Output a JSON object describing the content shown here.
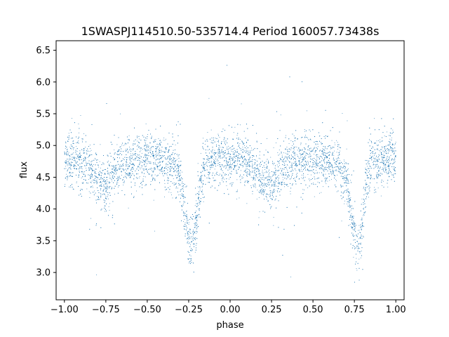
{
  "chart_data": {
    "type": "scatter",
    "title": "1SWASPJ114510.50-535714.4 Period 160057.73438s",
    "xlabel": "phase",
    "ylabel": "flux",
    "xlim": [
      -1.05,
      1.05
    ],
    "ylim": [
      2.57,
      6.65
    ],
    "x_ticks": [
      -1.0,
      -0.75,
      -0.5,
      -0.25,
      0.0,
      0.25,
      0.5,
      0.75,
      1.0
    ],
    "x_tick_labels": [
      "−1.00",
      "−0.75",
      "−0.50",
      "−0.25",
      "0.00",
      "0.25",
      "0.50",
      "0.75",
      "1.00"
    ],
    "y_ticks": [
      3.0,
      3.5,
      4.0,
      4.5,
      5.0,
      5.5,
      6.0,
      6.5
    ],
    "y_tick_labels": [
      "3.0",
      "3.5",
      "4.0",
      "4.5",
      "5.0",
      "5.5",
      "6.0",
      "6.5"
    ],
    "grid": false,
    "marker_color": "#1f77b4",
    "series": [
      {
        "x": [
          -1.0,
          -0.95,
          -0.9,
          -0.85,
          -0.8,
          -0.75,
          -0.7,
          -0.65,
          -0.6,
          -0.55,
          -0.5,
          -0.45,
          -0.4,
          -0.35,
          -0.3,
          -0.28,
          -0.26,
          -0.24,
          -0.22,
          -0.2,
          -0.18,
          -0.15,
          -0.1,
          -0.05,
          0.0,
          0.05,
          0.1,
          0.15,
          0.2,
          0.25,
          0.3,
          0.35,
          0.4,
          0.45,
          0.5,
          0.55,
          0.6,
          0.65,
          0.7,
          0.72,
          0.74,
          0.76,
          0.78,
          0.8,
          0.82,
          0.85,
          0.9,
          0.95,
          1.0
        ],
        "values": [
          4.75,
          4.78,
          4.72,
          4.62,
          4.45,
          4.35,
          4.6,
          4.72,
          4.75,
          4.78,
          4.8,
          4.78,
          4.75,
          4.7,
          4.45,
          4.1,
          3.7,
          3.45,
          3.5,
          3.9,
          4.4,
          4.7,
          4.75,
          4.8,
          4.8,
          4.78,
          4.72,
          4.62,
          4.45,
          4.35,
          4.6,
          4.72,
          4.75,
          4.78,
          4.8,
          4.78,
          4.75,
          4.7,
          4.45,
          4.1,
          3.7,
          3.45,
          3.5,
          3.9,
          4.4,
          4.7,
          4.75,
          4.8,
          4.8
        ]
      }
    ]
  }
}
